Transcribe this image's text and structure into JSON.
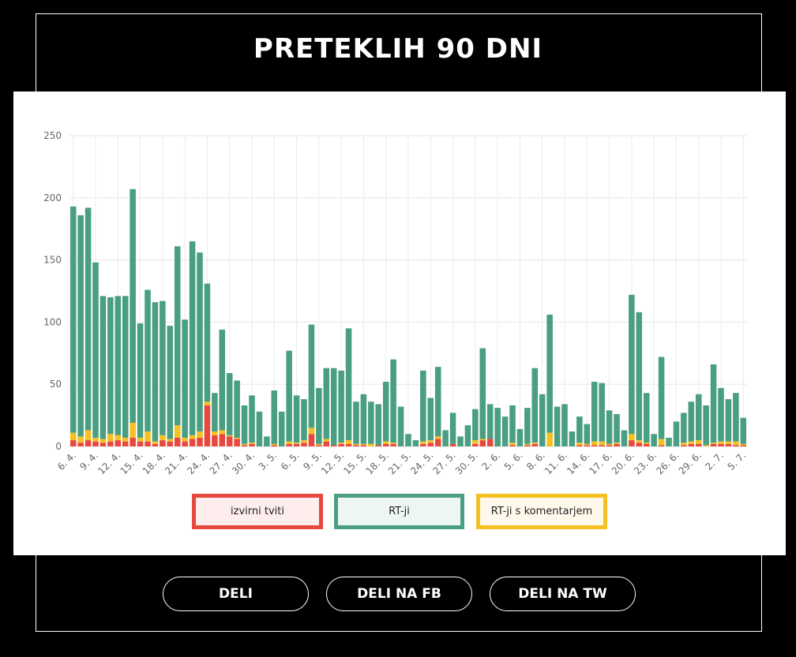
{
  "title": "PRETEKLIH 90 DNI",
  "buttons": [
    "DELI",
    "DELI NA FB",
    "DELI NA TW"
  ],
  "chart_data": {
    "type": "bar",
    "stacked": true,
    "categories": [
      "6. 4.",
      null,
      null,
      "9. 4.",
      null,
      null,
      "12. 4.",
      null,
      null,
      "15. 4.",
      null,
      null,
      "18. 4.",
      null,
      null,
      "21. 4.",
      null,
      null,
      "24. 4.",
      null,
      null,
      "27. 4.",
      null,
      null,
      "30. 4.",
      null,
      null,
      "3. 5.",
      null,
      null,
      "6. 5.",
      null,
      null,
      "9. 5.",
      null,
      null,
      "12. 5.",
      null,
      null,
      "15. 5.",
      null,
      null,
      "18. 5.",
      null,
      null,
      "21. 5.",
      null,
      null,
      "24. 5.",
      null,
      null,
      "27. 5.",
      null,
      null,
      "30. 5.",
      null,
      null,
      "2. 6.",
      null,
      null,
      "5. 6.",
      null,
      null,
      "8. 6.",
      null,
      null,
      "11. 6.",
      null,
      null,
      "14. 6.",
      null,
      null,
      "17. 6.",
      null,
      null,
      "20. 6.",
      null,
      null,
      "23. 6.",
      null,
      null,
      "26. 6.",
      null,
      null,
      "29. 6.",
      null,
      null,
      "2. 7.",
      null,
      null,
      "5. 7."
    ],
    "series": [
      {
        "name": "izvirni tviti",
        "color": "#e8493f",
        "values": [
          5,
          3,
          5,
          4,
          3,
          4,
          5,
          4,
          7,
          4,
          4,
          2,
          5,
          4,
          7,
          4,
          6,
          7,
          33,
          9,
          10,
          8,
          6,
          1,
          2,
          0,
          0,
          1,
          0,
          2,
          2,
          3,
          10,
          1,
          4,
          1,
          2,
          2,
          1,
          1,
          0,
          1,
          2,
          2,
          0,
          0,
          0,
          2,
          3,
          6,
          0,
          2,
          0,
          0,
          2,
          5,
          6,
          0,
          0,
          1,
          0,
          1,
          2,
          0,
          0,
          0,
          0,
          0,
          1,
          1,
          1,
          1,
          1,
          2,
          0,
          5,
          3,
          2,
          0,
          1,
          0,
          0,
          1,
          2,
          2,
          0,
          2,
          2,
          2,
          1,
          1
        ]
      },
      {
        "name": "RT-ji",
        "color": "#4a9e82",
        "values": [
          182,
          178,
          179,
          141,
          115,
          110,
          112,
          114,
          188,
          92,
          114,
          112,
          108,
          91,
          144,
          95,
          156,
          144,
          95,
          31,
          81,
          50,
          46,
          31,
          38,
          28,
          8,
          43,
          28,
          73,
          38,
          33,
          83,
          45,
          57,
          62,
          58,
          90,
          34,
          40,
          34,
          33,
          48,
          67,
          32,
          10,
          5,
          57,
          34,
          56,
          13,
          25,
          8,
          17,
          25,
          73,
          28,
          31,
          24,
          30,
          14,
          29,
          60,
          42,
          95,
          32,
          34,
          12,
          21,
          16,
          48,
          47,
          27,
          23,
          13,
          112,
          103,
          40,
          10,
          66,
          7,
          20,
          24,
          32,
          37,
          32,
          63,
          43,
          34,
          39,
          21
        ]
      },
      {
        "name": "RT-ji s komentarjem",
        "color": "#f5c022",
        "values": [
          6,
          5,
          8,
          3,
          3,
          6,
          4,
          3,
          12,
          3,
          8,
          2,
          4,
          2,
          10,
          3,
          3,
          5,
          3,
          3,
          3,
          1,
          1,
          1,
          1,
          0,
          0,
          1,
          0,
          2,
          1,
          2,
          5,
          1,
          2,
          0,
          1,
          3,
          1,
          1,
          2,
          0,
          2,
          1,
          0,
          0,
          0,
          2,
          2,
          2,
          0,
          0,
          0,
          0,
          3,
          1,
          0,
          0,
          0,
          2,
          0,
          1,
          1,
          0,
          11,
          0,
          0,
          0,
          2,
          1,
          3,
          3,
          1,
          1,
          0,
          5,
          2,
          1,
          0,
          5,
          0,
          0,
          2,
          2,
          3,
          1,
          1,
          2,
          2,
          3,
          1
        ]
      }
    ],
    "ylim": [
      0,
      250
    ],
    "yticks": [
      0,
      50,
      100,
      150,
      200,
      250
    ],
    "grid": true
  }
}
